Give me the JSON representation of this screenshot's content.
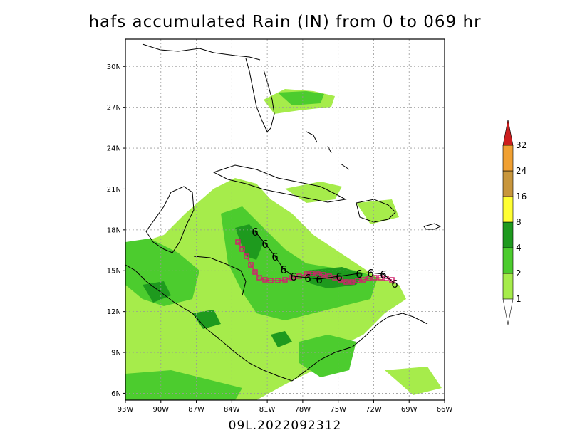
{
  "title": "hafs accumulated Rain (IN) from 0 to 069 hr",
  "footer": "09L.2022092312",
  "map": {
    "lon_range": [
      -93,
      -66
    ],
    "lat_range": [
      5.5,
      32
    ],
    "lon_ticks": [
      "93W",
      "90W",
      "87W",
      "84W",
      "81W",
      "78W",
      "75W",
      "72W",
      "69W",
      "66W"
    ],
    "lat_ticks": [
      "6N",
      "9N",
      "12N",
      "15N",
      "18N",
      "21N",
      "24N",
      "27N",
      "30N"
    ]
  },
  "colorbar": {
    "levels": [
      "1",
      "2",
      "4",
      "8",
      "16",
      "24",
      "32"
    ],
    "colors": [
      "#a6ec4b",
      "#4ccc2e",
      "#1e9a1e",
      "#ffff33",
      "#c8963c",
      "#f0a032",
      "#cc1e1e"
    ]
  },
  "track": {
    "symbol": "6",
    "track_color": "#000000",
    "marker_color": "#d0226c"
  }
}
